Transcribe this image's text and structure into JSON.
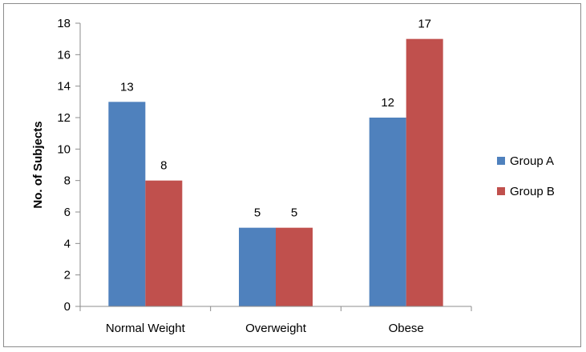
{
  "chart_data": {
    "type": "bar",
    "title": "",
    "xlabel": "",
    "ylabel": "No. of Subjects",
    "categories": [
      "Normal Weight",
      "Overweight",
      "Obese"
    ],
    "series": [
      {
        "name": "Group A",
        "values": [
          13,
          5,
          12
        ],
        "color": "#4f81bd"
      },
      {
        "name": "Group B",
        "values": [
          8,
          5,
          17
        ],
        "color": "#c0504d"
      }
    ],
    "ylim": [
      0,
      18
    ],
    "yticks": [
      0,
      2,
      4,
      6,
      8,
      10,
      12,
      14,
      16,
      18
    ],
    "grid": false,
    "legend_position": "right",
    "data_labels": true
  }
}
